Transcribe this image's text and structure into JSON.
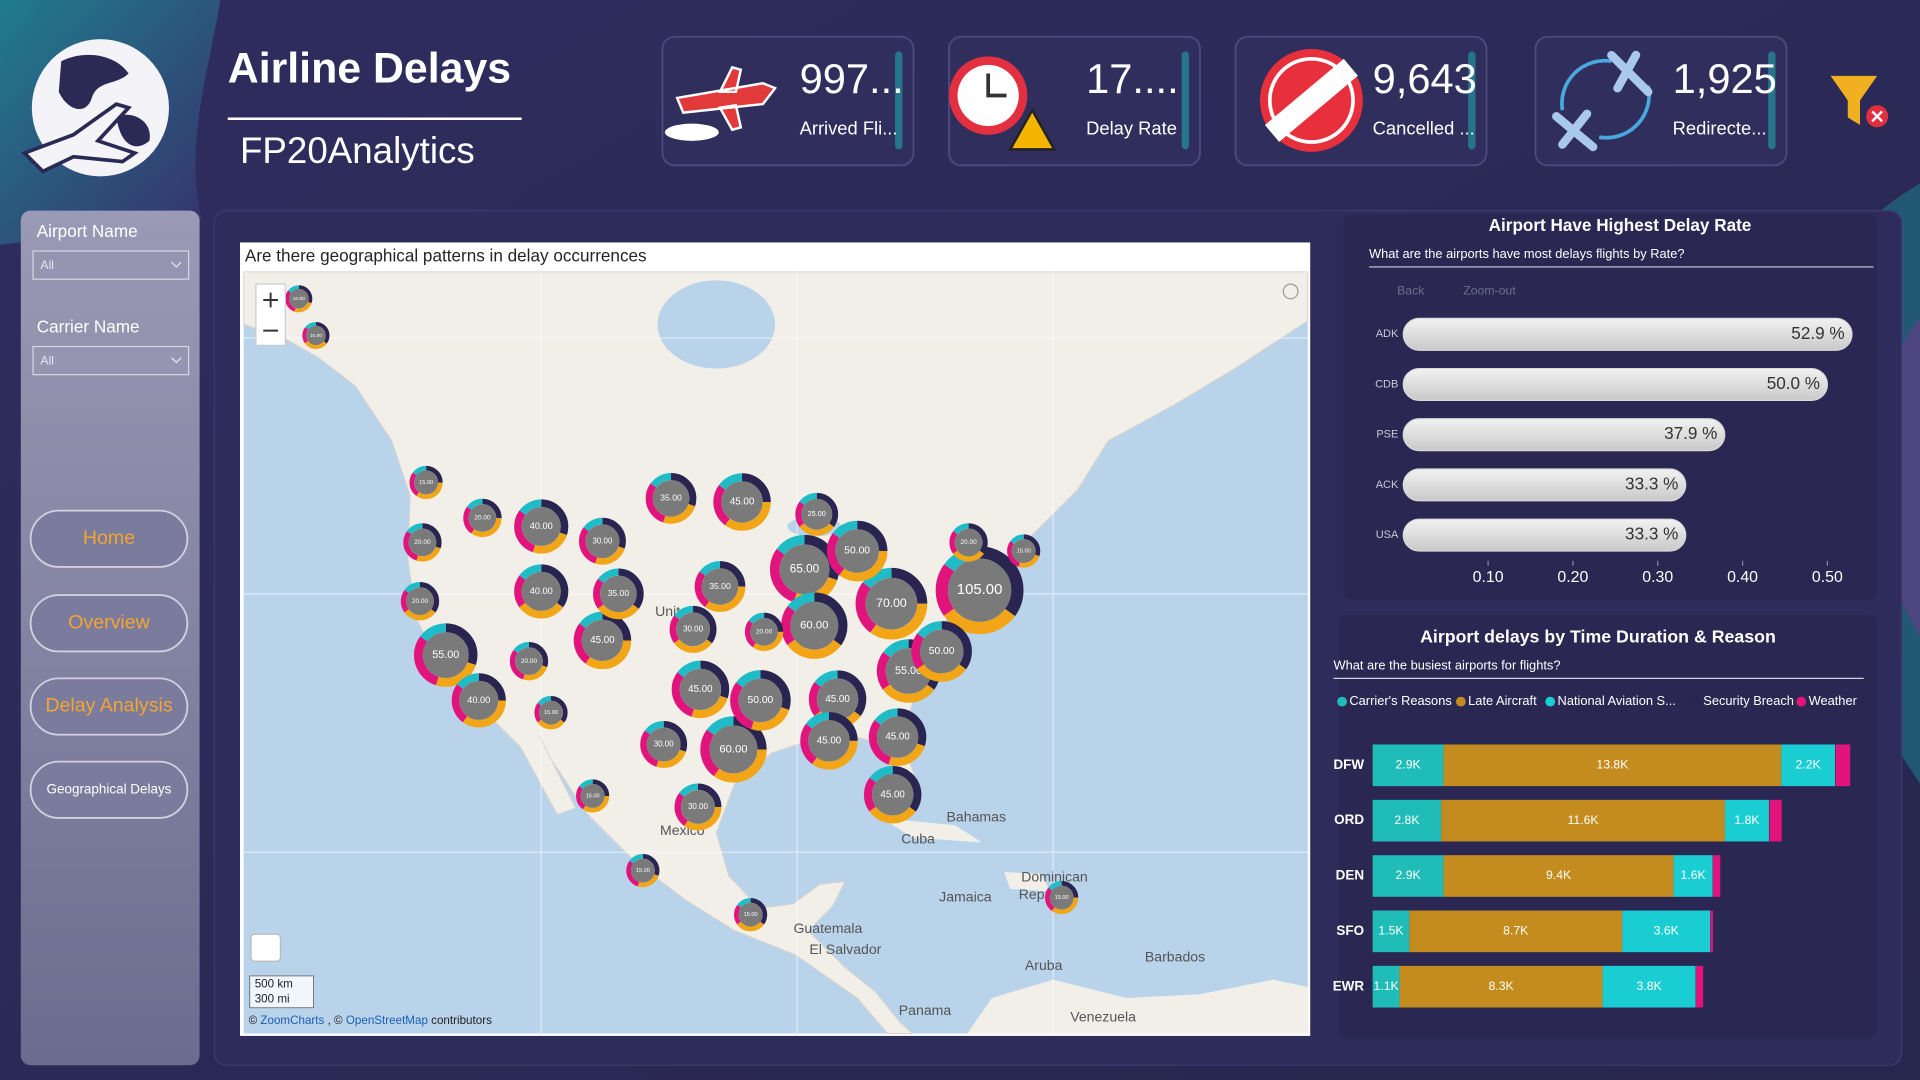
{
  "header": {
    "title": "Airline Delays",
    "subtitle": "FP20Analytics"
  },
  "kpis": [
    {
      "value": "997...",
      "label": "Arrived Fli..."
    },
    {
      "value": "17....",
      "label": "Delay Rate"
    },
    {
      "value": "9,643",
      "label": "Cancelled ..."
    },
    {
      "value": "1,925",
      "label": "Redirecte..."
    }
  ],
  "filters": [
    {
      "label": "Airport Name",
      "value": "All"
    },
    {
      "label": "Carrier Name",
      "value": "All"
    }
  ],
  "nav": [
    "Home",
    "Overview",
    "Delay Analysis",
    "Geographical Delays"
  ],
  "chart_data": [
    {
      "type": "map",
      "title": "Are there geographical patterns in delay occurrences",
      "values": [
        105,
        70,
        65,
        60,
        60,
        55,
        55,
        50,
        50,
        50,
        45,
        45,
        45,
        45,
        45,
        45,
        45,
        40,
        40,
        40,
        35,
        35,
        35,
        30,
        30,
        30,
        30,
        25,
        20,
        20,
        20,
        20,
        20,
        20,
        15,
        15,
        15,
        15,
        15,
        15,
        15,
        10,
        10
      ],
      "value_labels": [
        "105.00",
        "70.00",
        "65.00",
        "60.00",
        "60.00",
        "55.00",
        "55.00",
        "50.00",
        "50.00",
        "50.00",
        "45.00",
        "45.00",
        "45.00",
        "45.00",
        "45.00",
        "45.00",
        "45.00",
        "40.00",
        "40.00",
        "40.00",
        "35.00",
        "35.00",
        "35.00",
        "30.00",
        "30.00",
        "30.00",
        "30.00",
        "25.00",
        "20.00",
        "20.00",
        "20.00",
        "20.00",
        "20.00",
        "20.00",
        "15.00",
        "15.00",
        "15.00",
        "15.00",
        "15.00",
        "15.00",
        "15.00",
        "10.00",
        "10.00"
      ],
      "places": [
        "United",
        "Mexico",
        "Bahamas",
        "Cuba",
        "Jamaica",
        "Dominican",
        "Republic",
        "Guatemala",
        "El Salvador",
        "Barbados",
        "Aruba",
        "Panama",
        "Venezuela"
      ],
      "scale_labels": [
        "500 km",
        "300 mi"
      ],
      "attribution": [
        "©",
        "ZoomCharts",
        ", ©",
        "OpenStreetMap",
        "contributors"
      ]
    },
    {
      "type": "bar",
      "orientation": "horizontal",
      "title": "Airport Have Highest Delay Rate",
      "subtitle": "What are the airports have most delays flights by Rate?",
      "toolbar": [
        "Back",
        "Zoom-out"
      ],
      "categories": [
        "ADK",
        "CDB",
        "PSE",
        "ACK",
        "USA"
      ],
      "values": [
        0.529,
        0.5,
        0.379,
        0.333,
        0.333
      ],
      "value_labels": [
        "52.9 %",
        "50.0 %",
        "37.9 %",
        "33.3 %",
        "33.3 %"
      ],
      "color": "#d9d9d9",
      "xlim": [
        0,
        0.55
      ],
      "xticks": [
        {
          "value": 0.1,
          "label": "0.10"
        },
        {
          "value": 0.2,
          "label": "0.20"
        },
        {
          "value": 0.3,
          "label": "0.30"
        },
        {
          "value": 0.4,
          "label": "0.40"
        },
        {
          "value": 0.5,
          "label": "0.50"
        }
      ]
    },
    {
      "type": "bar",
      "orientation": "horizontal",
      "stacked": true,
      "title": "Airport delays by Time Duration & Reason",
      "subtitle": "What are the busiest airports for flights?",
      "legend": "top",
      "categories": [
        "DFW",
        "ORD",
        "DEN",
        "SFO",
        "EWR"
      ],
      "series": [
        {
          "name": "Carrier's Reasons",
          "color": "#1fbcb8",
          "values": [
            2900,
            2800,
            2900,
            1500,
            1100
          ],
          "value_labels": [
            "2.9K",
            "2.8K",
            "2.9K",
            "1.5K",
            "1.1K"
          ]
        },
        {
          "name": "Late Aircraft",
          "color": "#c48c1e",
          "values": [
            13800,
            11600,
            9400,
            8700,
            8300
          ],
          "value_labels": [
            "13.8K",
            "11.6K",
            "9.4K",
            "8.7K",
            "8.3K"
          ]
        },
        {
          "name": "National Aviation S...",
          "color": "#19cdd3",
          "values": [
            2200,
            1800,
            1600,
            3600,
            3800
          ],
          "value_labels": [
            "2.2K",
            "1.8K",
            "1.6K",
            "3.6K",
            "3.8K"
          ]
        },
        {
          "name": "Security Breach",
          "color": "#2a2550",
          "values": [
            20,
            20,
            10,
            10,
            10
          ],
          "value_labels": [
            null,
            null,
            null,
            null,
            null
          ]
        },
        {
          "name": "Weather",
          "color": "#e0147c",
          "values": [
            600,
            500,
            300,
            100,
            300
          ],
          "value_labels": [
            null,
            null,
            null,
            null,
            null
          ]
        }
      ]
    }
  ]
}
